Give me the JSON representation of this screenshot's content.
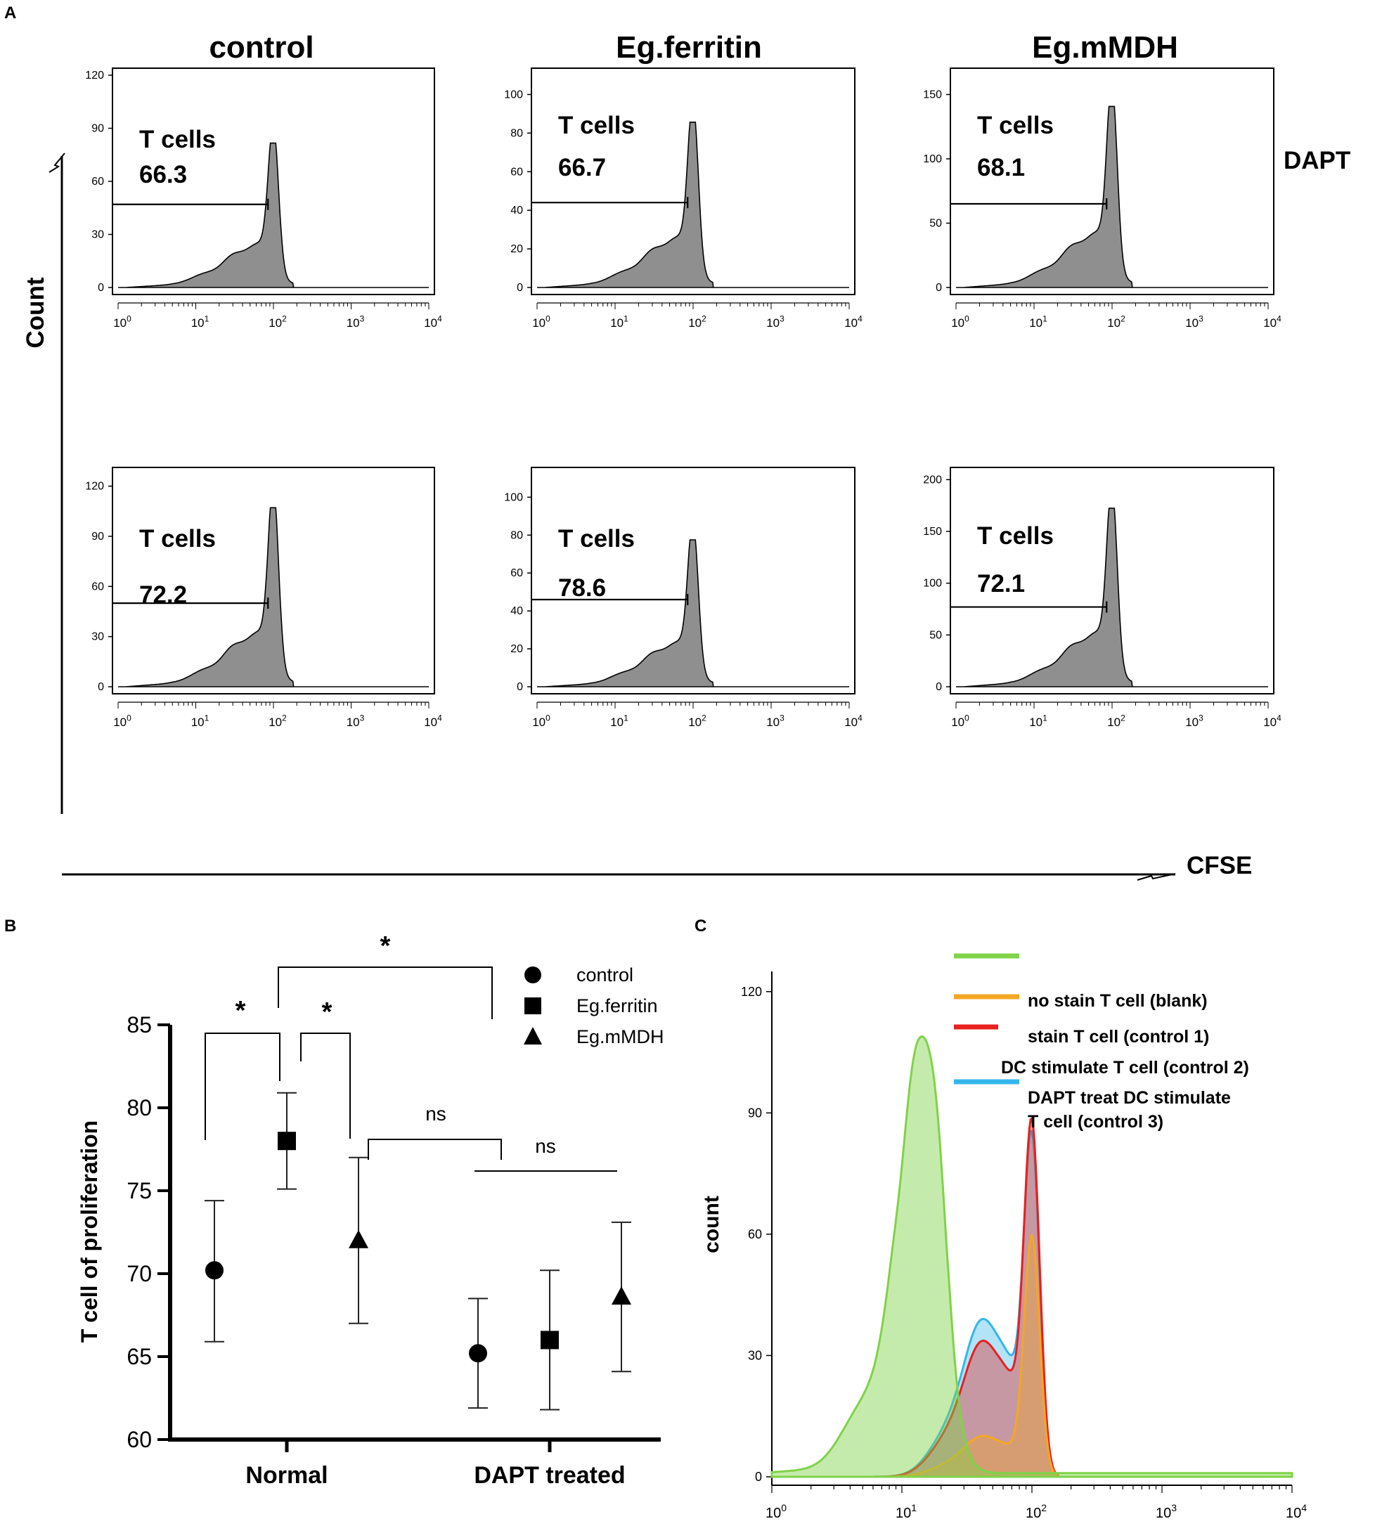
{
  "panel_labels": {
    "a": "A",
    "b": "B",
    "c": "C"
  },
  "panel_a": {
    "columns": [
      "control",
      "Eg.ferritin",
      "Eg.mMDH"
    ],
    "y_axis_label": "Count",
    "x_axis_label": "CFSE",
    "row_label": "DAPT",
    "gate_label": "T cells",
    "x_ticks": [
      "0",
      "1",
      "2",
      "3",
      "4"
    ],
    "x_tick_base": "10",
    "histograms": [
      {
        "row": 1,
        "column": "control",
        "gate_value": "66.3",
        "y_ticks": [
          0,
          30,
          60,
          90,
          120
        ],
        "y_max": 120,
        "peak": 80,
        "gate_y": 47
      },
      {
        "row": 1,
        "column": "Eg.ferritin",
        "gate_value": "66.7",
        "y_ticks": [
          0,
          20,
          40,
          60,
          80,
          100
        ],
        "y_max": 110,
        "peak": 84,
        "gate_y": 44
      },
      {
        "row": 1,
        "column": "Eg.mMDH",
        "gate_value": "68.1",
        "y_ticks": [
          0,
          50,
          100,
          150
        ],
        "y_max": 165,
        "peak": 138,
        "gate_y": 65
      },
      {
        "row": 2,
        "column": "control",
        "gate_value": "72.2",
        "y_ticks": [
          0,
          30,
          60,
          90,
          120
        ],
        "y_max": 127,
        "peak": 105,
        "gate_y": 50
      },
      {
        "row": 2,
        "column": "Eg.ferritin",
        "gate_value": "78.6",
        "y_ticks": [
          0,
          20,
          40,
          60,
          80,
          100
        ],
        "y_max": 112,
        "peak": 76,
        "gate_y": 46
      },
      {
        "row": 2,
        "column": "Eg.mMDH",
        "gate_value": "72.1",
        "y_ticks": [
          0,
          50,
          100,
          150,
          200
        ],
        "y_max": 205,
        "peak": 169,
        "gate_y": 77
      }
    ]
  },
  "chart_data": [
    {
      "type": "scatter",
      "title": "",
      "ylabel": "T cell of proliferation",
      "xlabel": "",
      "groups": [
        "Normal",
        "DAPT treated"
      ],
      "ylim": [
        60,
        85
      ],
      "y_ticks": [
        60,
        65,
        70,
        75,
        80,
        85
      ],
      "legend": [
        "control",
        "Eg.ferritin",
        "Eg.mMDH"
      ],
      "series": [
        {
          "name": "control",
          "marker": "circle",
          "values": [
            70.2,
            65.2
          ],
          "err_low": [
            65.9,
            61.9
          ],
          "err_high": [
            74.4,
            68.5
          ]
        },
        {
          "name": "Eg.ferritin",
          "marker": "square",
          "values": [
            78.0,
            66.0
          ],
          "err_low": [
            75.1,
            61.8
          ],
          "err_high": [
            80.9,
            70.2
          ]
        },
        {
          "name": "Eg.mMDH",
          "marker": "triangle",
          "values": [
            72.0,
            68.6
          ],
          "err_low": [
            67.0,
            64.1
          ],
          "err_high": [
            77.0,
            73.1
          ]
        }
      ],
      "significance": [
        {
          "label": "*",
          "between": [
            "Normal control",
            "Normal Eg.ferritin"
          ]
        },
        {
          "label": "*",
          "between": [
            "Normal Eg.ferritin",
            "Normal Eg.mMDH"
          ]
        },
        {
          "label": "*",
          "between": [
            "Normal Eg.ferritin",
            "DAPT treated"
          ]
        },
        {
          "label": "ns",
          "between": [
            "Normal Eg.mMDH",
            "DAPT treated"
          ]
        },
        {
          "label": "ns",
          "between": [
            "DAPT treated groups"
          ]
        }
      ]
    },
    {
      "type": "area",
      "title": "",
      "ylabel": "count",
      "xlabel": "",
      "xscale": "log",
      "xlim": [
        1,
        10000
      ],
      "x_ticks": [
        "0",
        "1",
        "2",
        "3",
        "4"
      ],
      "x_tick_base": "10",
      "ylim": [
        0,
        125
      ],
      "y_ticks": [
        0,
        30,
        60,
        90,
        120
      ],
      "series": [
        {
          "name": "no stain T cell (blank)",
          "color": "#7ED348",
          "peak_x": 13,
          "peak_y": 103
        },
        {
          "name": "stain T cell (control 1)",
          "color": "#F5A623",
          "peak_x": 100,
          "peak_y": 58
        },
        {
          "name": "DC stimulate T cell (control 2)",
          "color": "#E8201E",
          "peak_x": 100,
          "peak_y": 83
        },
        {
          "name": "DAPT treat DC  stimulate T cell (control 3)",
          "color": "#35B6EA",
          "peak_x": 100,
          "peak_y": 79
        }
      ]
    }
  ],
  "panel_c_legend": {
    "line1": "no stain T cell (blank)",
    "line2": "stain T cell (control 1)",
    "line3": "DC stimulate T cell (control 2)",
    "line4a": "DAPT treat DC  stimulate",
    "line4b": "T cell (control 3)"
  }
}
